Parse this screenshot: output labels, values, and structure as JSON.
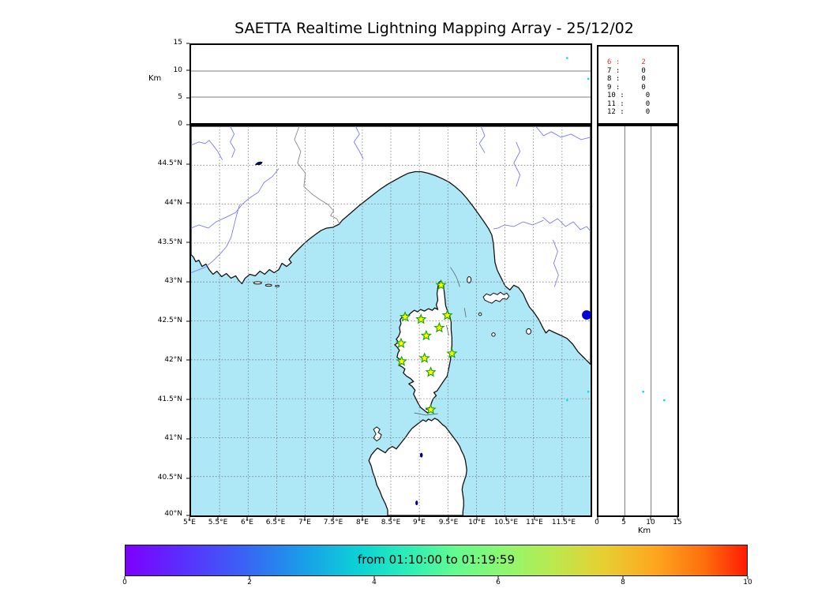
{
  "title": "SAETTA Realtime Lightning Mapping Array - 25/12/02",
  "alt_axis": {
    "label": "Km",
    "ticks": [
      "0",
      "5",
      "10",
      "15"
    ]
  },
  "counts_panel": {
    "rows": [
      {
        "text": "6 :     2",
        "highlight": true
      },
      {
        "text": "7 :     0",
        "highlight": false
      },
      {
        "text": "8 :     0",
        "highlight": false
      },
      {
        "text": "9 :     0",
        "highlight": false
      },
      {
        "text": "10 :     0",
        "highlight": false
      },
      {
        "text": "11 :     0",
        "highlight": false
      },
      {
        "text": "12 :     0",
        "highlight": false
      }
    ]
  },
  "map": {
    "lat_labels": [
      "44.5°N",
      "44°N",
      "43.5°N",
      "43°N",
      "42.5°N",
      "42°N",
      "41.5°N",
      "41°N",
      "40.5°N",
      "40°N"
    ],
    "lon_labels": [
      "5°E",
      "5.5°E",
      "6°E",
      "6.5°E",
      "7°E",
      "7.5°E",
      "8°E",
      "8.5°E",
      "9°E",
      "9.5°E",
      "10°E",
      "10.5°E",
      "11°E",
      "11.5°E"
    ]
  },
  "right_axis": {
    "label": "Km",
    "ticks": [
      "0",
      "5",
      "10",
      "15"
    ]
  },
  "colorbar": {
    "label": "from 01:10:00 to 01:19:59",
    "ticks": [
      "0",
      "2",
      "4",
      "6",
      "8",
      "10"
    ]
  },
  "colors": {
    "sea": "#aee7f6",
    "river": "#7a7af0",
    "station_fill": "#ffff00",
    "station_stroke": "#15a000",
    "source": "#00dce0",
    "lake": "#0000d4",
    "highlight_text": "#e83030"
  },
  "chart_data": {
    "type": "scatter",
    "title": "SAETTA Realtime Lightning Mapping Array - 25/12/02",
    "map_extent": {
      "lon": [
        5,
        12
      ],
      "lat": [
        40,
        45
      ]
    },
    "alt_axis_km": [
      0,
      15
    ],
    "time_window": {
      "from": "01:10:00",
      "to": "01:19:59"
    },
    "colorbar_range": [
      0,
      10
    ],
    "stations_lonlat": [
      [
        9.38,
        42.96
      ],
      [
        8.75,
        42.55
      ],
      [
        9.03,
        42.52
      ],
      [
        9.49,
        42.57
      ],
      [
        9.35,
        42.41
      ],
      [
        9.12,
        42.31
      ],
      [
        8.68,
        42.21
      ],
      [
        9.57,
        42.08
      ],
      [
        8.69,
        41.98
      ],
      [
        9.09,
        42.02
      ],
      [
        9.2,
        41.84
      ],
      [
        9.2,
        41.36
      ]
    ],
    "sources": [
      {
        "lon": 11.96,
        "lat": 41.59,
        "alt_km": 8.5
      },
      {
        "lon": 11.59,
        "lat": 41.48,
        "alt_km": 12.5
      }
    ],
    "counts_by_minute": {
      "6": 2,
      "7": 0,
      "8": 0,
      "9": 0,
      "10": 0,
      "11": 0,
      "12": 0
    }
  }
}
